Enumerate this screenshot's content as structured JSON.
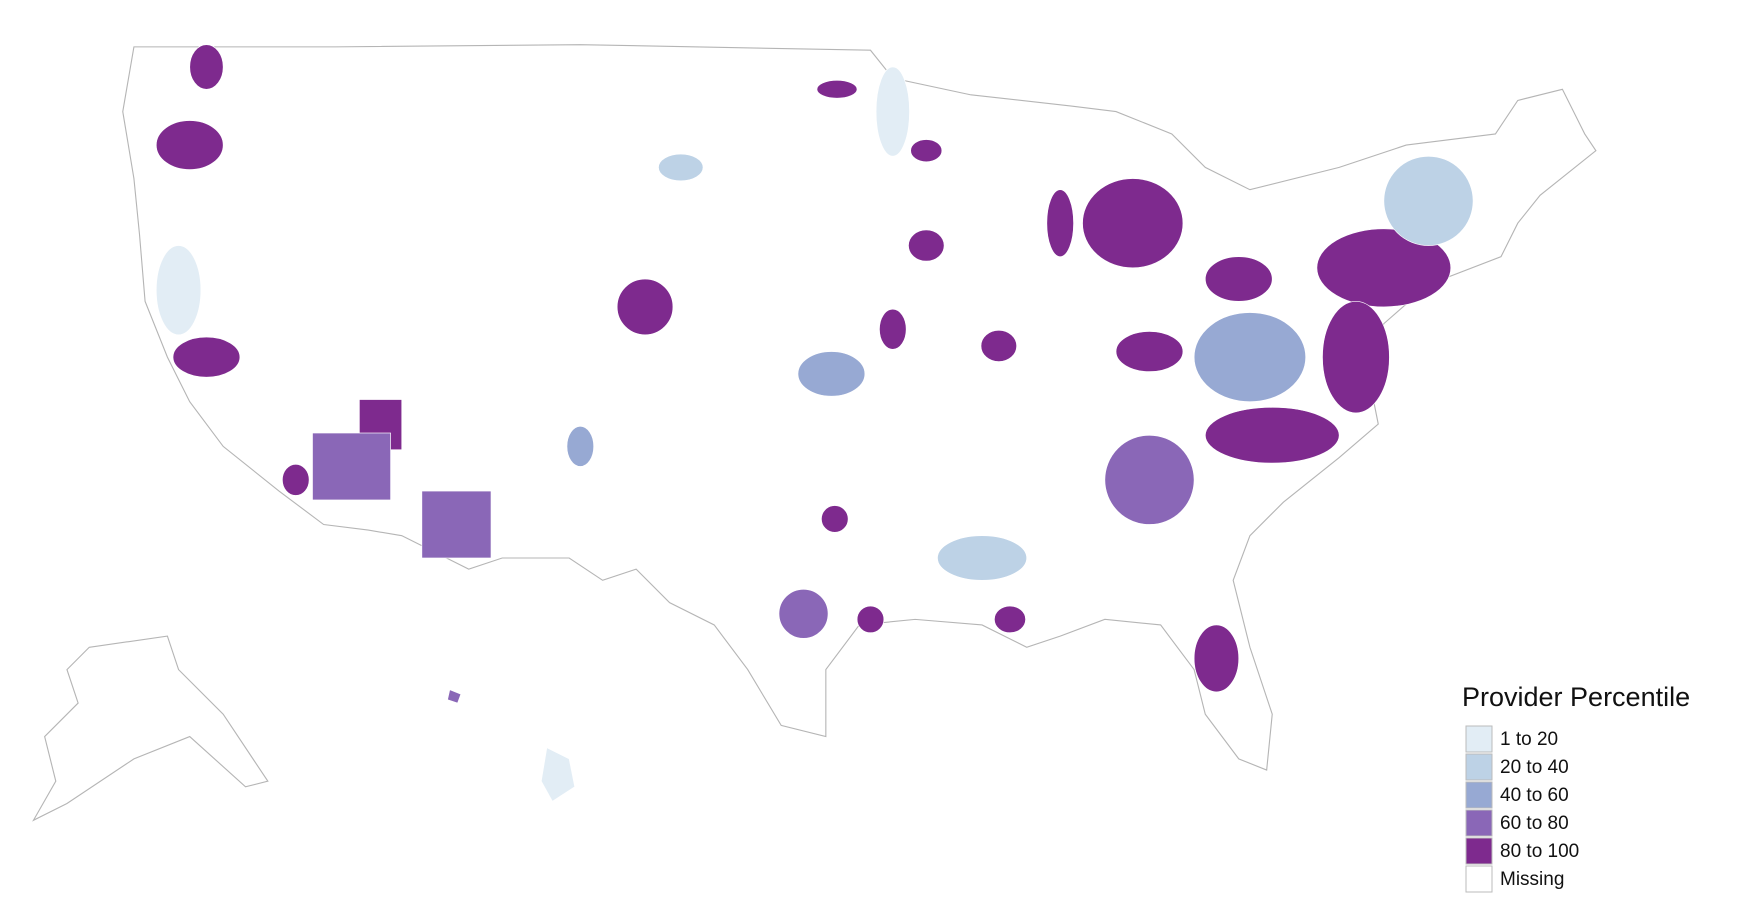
{
  "legend": {
    "title": "Provider Percentile",
    "items": [
      {
        "label": "1 to 20",
        "color": "#e2edf5"
      },
      {
        "label": "20 to 40",
        "color": "#bdd2e6"
      },
      {
        "label": "40 to 60",
        "color": "#97a9d3"
      },
      {
        "label": "60 to 80",
        "color": "#8a67b7"
      },
      {
        "label": "80 to 100",
        "color": "#7e2a8e"
      },
      {
        "label": "Missing",
        "color": "#ffffff"
      }
    ]
  }
}
